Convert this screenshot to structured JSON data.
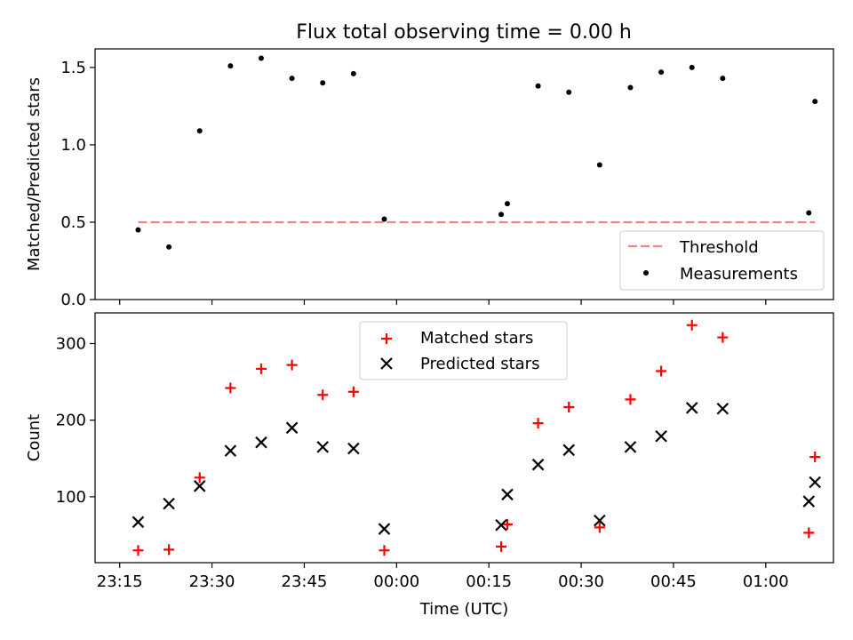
{
  "figure": {
    "title": "Flux total observing time = 0.00 h"
  },
  "chart_data": [
    {
      "type": "scatter",
      "ylabel": "Matched/Predicted stars",
      "ylim": [
        0,
        1.62
      ],
      "yticks": [
        0.0,
        0.5,
        1.0,
        1.5
      ],
      "ytick_labels": [
        "0.0",
        "0.5",
        "1.0",
        "1.5"
      ],
      "x_range": [
        "23:11",
        "01:11"
      ],
      "legend": {
        "placement": "lower right",
        "entries": [
          "Threshold",
          "Measurements"
        ]
      },
      "threshold": {
        "name": "Threshold",
        "value": 0.5,
        "x": [
          "23:18",
          "01:08"
        ],
        "color": "#ff7f7f",
        "style": "dashed"
      },
      "series": [
        {
          "name": "Measurements",
          "color": "#000000",
          "marker": "dot",
          "points": [
            {
              "x": "23:18",
              "y": 0.45
            },
            {
              "x": "23:23",
              "y": 0.34
            },
            {
              "x": "23:28",
              "y": 1.09
            },
            {
              "x": "23:33",
              "y": 1.51
            },
            {
              "x": "23:38",
              "y": 1.56
            },
            {
              "x": "23:43",
              "y": 1.43
            },
            {
              "x": "23:48",
              "y": 1.4
            },
            {
              "x": "23:53",
              "y": 1.46
            },
            {
              "x": "23:58",
              "y": 0.52
            },
            {
              "x": "00:17",
              "y": 0.55
            },
            {
              "x": "00:18",
              "y": 0.62
            },
            {
              "x": "00:23",
              "y": 1.38
            },
            {
              "x": "00:28",
              "y": 1.34
            },
            {
              "x": "00:33",
              "y": 0.87
            },
            {
              "x": "00:38",
              "y": 1.37
            },
            {
              "x": "00:43",
              "y": 1.47
            },
            {
              "x": "00:48",
              "y": 1.5
            },
            {
              "x": "00:53",
              "y": 1.43
            },
            {
              "x": "01:07",
              "y": 0.56
            },
            {
              "x": "01:08",
              "y": 1.28
            }
          ]
        }
      ]
    },
    {
      "type": "scatter",
      "xlabel": "Time (UTC)",
      "ylabel": "Count",
      "ylim": [
        14,
        340
      ],
      "yticks": [
        100,
        200,
        300
      ],
      "ytick_labels": [
        "100",
        "200",
        "300"
      ],
      "x_range": [
        "23:11",
        "01:11"
      ],
      "xticks": [
        "23:15",
        "23:30",
        "23:45",
        "00:00",
        "00:15",
        "00:30",
        "00:45",
        "01:00"
      ],
      "xtick_labels": [
        "23:15",
        "23:30",
        "23:45",
        "00:00",
        "00:15",
        "00:30",
        "00:45",
        "01:00"
      ],
      "legend": {
        "placement": "upper center",
        "entries": [
          "Matched stars",
          "Predicted stars"
        ]
      },
      "series": [
        {
          "name": "Matched stars",
          "color": "#ff0000",
          "marker": "plus",
          "points": [
            {
              "x": "23:18",
              "y": 30
            },
            {
              "x": "23:23",
              "y": 31
            },
            {
              "x": "23:28",
              "y": 125
            },
            {
              "x": "23:33",
              "y": 242
            },
            {
              "x": "23:38",
              "y": 267
            },
            {
              "x": "23:43",
              "y": 272
            },
            {
              "x": "23:48",
              "y": 233
            },
            {
              "x": "23:53",
              "y": 237
            },
            {
              "x": "23:58",
              "y": 30
            },
            {
              "x": "00:17",
              "y": 35
            },
            {
              "x": "00:18",
              "y": 64
            },
            {
              "x": "00:23",
              "y": 196
            },
            {
              "x": "00:28",
              "y": 217
            },
            {
              "x": "00:33",
              "y": 60
            },
            {
              "x": "00:38",
              "y": 227
            },
            {
              "x": "00:43",
              "y": 264
            },
            {
              "x": "00:48",
              "y": 324
            },
            {
              "x": "00:53",
              "y": 308
            },
            {
              "x": "01:07",
              "y": 53
            },
            {
              "x": "01:08",
              "y": 152
            }
          ]
        },
        {
          "name": "Predicted stars",
          "color": "#000000",
          "marker": "x",
          "points": [
            {
              "x": "23:18",
              "y": 67
            },
            {
              "x": "23:23",
              "y": 91
            },
            {
              "x": "23:28",
              "y": 114
            },
            {
              "x": "23:33",
              "y": 160
            },
            {
              "x": "23:38",
              "y": 171
            },
            {
              "x": "23:43",
              "y": 190
            },
            {
              "x": "23:48",
              "y": 165
            },
            {
              "x": "23:53",
              "y": 163
            },
            {
              "x": "23:58",
              "y": 58
            },
            {
              "x": "00:17",
              "y": 63
            },
            {
              "x": "00:18",
              "y": 103
            },
            {
              "x": "00:23",
              "y": 142
            },
            {
              "x": "00:28",
              "y": 161
            },
            {
              "x": "00:33",
              "y": 69
            },
            {
              "x": "00:38",
              "y": 165
            },
            {
              "x": "00:43",
              "y": 179
            },
            {
              "x": "00:48",
              "y": 216
            },
            {
              "x": "00:53",
              "y": 215
            },
            {
              "x": "01:07",
              "y": 94
            },
            {
              "x": "01:08",
              "y": 119
            }
          ]
        }
      ]
    }
  ]
}
